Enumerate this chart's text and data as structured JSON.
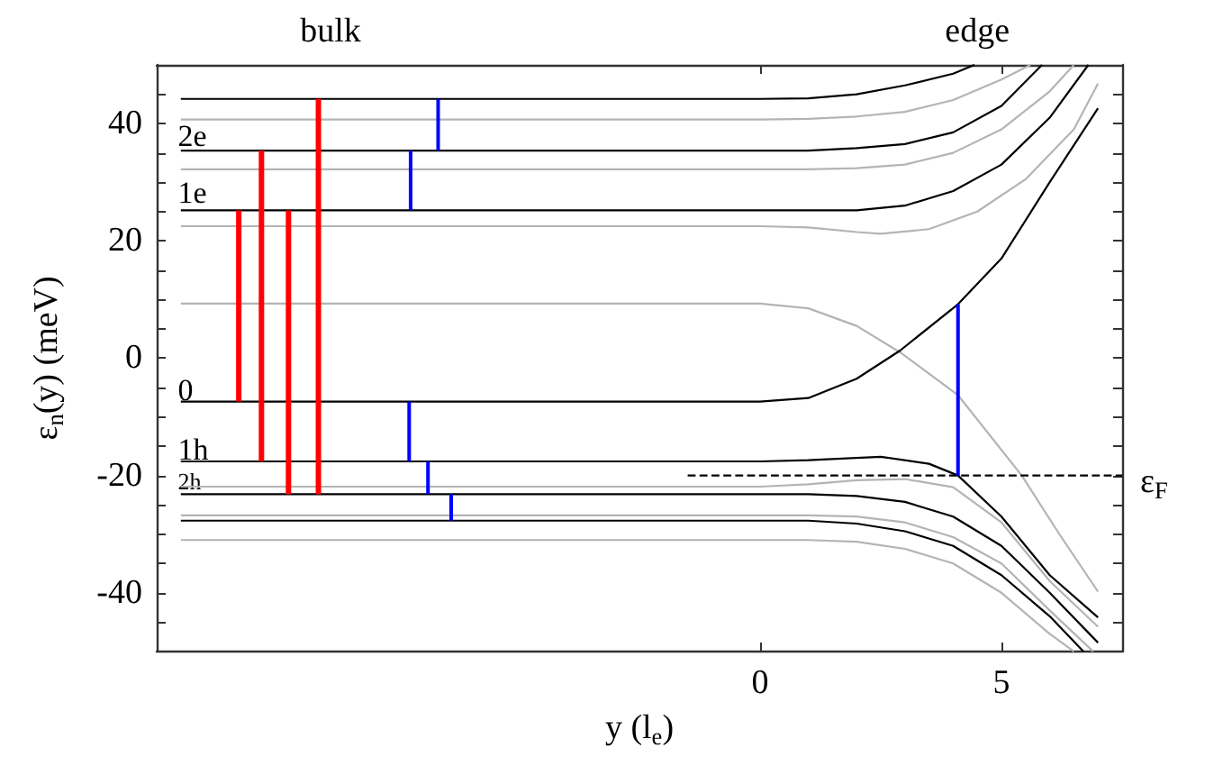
{
  "chart_data": {
    "type": "line",
    "xlabel": "y (l$_{e}$)",
    "ylabel": "ε$_{n}$(y) (meV)",
    "xlim": [
      -12.5,
      7.5
    ],
    "ylim": [
      -50,
      50
    ],
    "xticks": [
      0,
      5
    ],
    "yticks": [
      {
        "value": -45,
        "label": null
      },
      -40,
      {
        "value": -35,
        "label": null
      },
      {
        "value": -30,
        "label": null
      },
      {
        "value": -25,
        "label": null
      },
      -20,
      {
        "value": -15,
        "label": null
      },
      {
        "value": -10,
        "label": null
      },
      {
        "value": -5,
        "label": null
      },
      0,
      {
        "value": 5,
        "label": null
      },
      {
        "value": 10,
        "label": null
      },
      {
        "value": 15,
        "label": null
      },
      20,
      {
        "value": 25,
        "label": null
      },
      {
        "value": 30,
        "label": null
      },
      {
        "value": 35,
        "label": null
      },
      40,
      {
        "value": 45,
        "label": null
      }
    ],
    "grid": false,
    "marker": "none",
    "line_style": "solid",
    "series": [
      {
        "color": "#000000",
        "x": [
          -12,
          0,
          1,
          2,
          3,
          4,
          4.44
        ],
        "values": [
          44.2,
          44.2,
          44.3,
          45,
          46.5,
          48.5,
          50
        ]
      },
      {
        "color": "#b4b4b4",
        "x": [
          -12,
          0,
          1,
          2,
          3,
          4,
          5,
          5.6
        ],
        "values": [
          40.7,
          40.7,
          40.8,
          41.2,
          42,
          44,
          47.5,
          50
        ]
      },
      {
        "color": "#000000",
        "x": [
          -12,
          0,
          1,
          2,
          3,
          4,
          5,
          5.84
        ],
        "values": [
          35.4,
          35.4,
          35.4,
          35.8,
          36.5,
          38.5,
          43,
          50
        ]
      },
      {
        "color": "#b4b4b4",
        "x": [
          -12,
          0,
          1,
          2,
          3,
          4,
          5,
          6,
          6.5
        ],
        "values": [
          32.2,
          32.2,
          32.2,
          32.4,
          33,
          35,
          39,
          45.5,
          50
        ]
      },
      {
        "color": "#000000",
        "x": [
          -12,
          0,
          1,
          2,
          3,
          4,
          5,
          6,
          6.8
        ],
        "values": [
          25.2,
          25.2,
          25.2,
          25.2,
          26,
          28.5,
          33,
          41,
          50
        ]
      },
      {
        "color": "#b4b4b4",
        "x": [
          -12,
          0,
          1,
          2,
          2.5,
          3.5,
          4.5,
          5.5,
          6.5,
          7
        ],
        "values": [
          22.5,
          22.5,
          22.3,
          21.5,
          21.2,
          22,
          25,
          30.5,
          39,
          46.8
        ]
      },
      {
        "color": "#b4b4b4",
        "x": [
          -12,
          0,
          1,
          2,
          2.9,
          4.1,
          5.42,
          6.2,
          7
        ],
        "values": [
          9.3,
          9.3,
          8.5,
          5.5,
          1,
          -6.3,
          -20,
          -30,
          -39.8
        ]
      },
      {
        "color": "#000000",
        "x": [
          -12,
          0,
          1,
          2,
          2.9,
          4.1,
          5,
          6,
          7
        ],
        "values": [
          -7.4,
          -7.4,
          -6.8,
          -3.5,
          1.3,
          9.2,
          17,
          30,
          42.6
        ]
      },
      {
        "color": "#000000",
        "x": [
          -12,
          0,
          1,
          2.5,
          3.5,
          4.1,
          5,
          6,
          7
        ],
        "values": [
          -17.6,
          -17.6,
          -17.4,
          -16.8,
          -18,
          -20,
          -27,
          -37,
          -44.2
        ]
      },
      {
        "color": "#b4b4b4",
        "x": [
          -12,
          0,
          1,
          2,
          3,
          4,
          5,
          6,
          7
        ],
        "values": [
          -21.9,
          -21.9,
          -21.5,
          -20.8,
          -20.6,
          -22,
          -28,
          -38,
          -45.8
        ]
      },
      {
        "color": "#000000",
        "x": [
          -12,
          0,
          1,
          2,
          3,
          4,
          5,
          6,
          7
        ],
        "values": [
          -23.2,
          -23.2,
          -23.2,
          -23.5,
          -24.5,
          -27,
          -32,
          -40,
          -48.5
        ]
      },
      {
        "color": "#b4b4b4",
        "x": [
          -12,
          0,
          1,
          2,
          3,
          4,
          5,
          6,
          6.9
        ],
        "values": [
          -26.8,
          -26.8,
          -26.8,
          -27,
          -28,
          -30.5,
          -35,
          -43,
          -50
        ]
      },
      {
        "color": "#000000",
        "x": [
          -12,
          0,
          1,
          2,
          3,
          4,
          5,
          6,
          6.7
        ],
        "values": [
          -27.7,
          -27.7,
          -27.7,
          -28.2,
          -29.5,
          -32,
          -37,
          -44,
          -50
        ]
      },
      {
        "color": "#b4b4b4",
        "x": [
          -12,
          0,
          1,
          2,
          3,
          4,
          5,
          6,
          6.5
        ],
        "values": [
          -31,
          -31,
          -31,
          -31.3,
          -32.5,
          -35,
          -40,
          -47,
          -50
        ]
      },
      {
        "color": "#000000",
        "line_style": "dashed",
        "x": [
          -1.5,
          7.5
        ],
        "values": [
          -20,
          -20
        ]
      },
      {
        "color": "#ff0000",
        "x": [
          -10.8,
          -10.8
        ],
        "values": [
          -7.4,
          25.2
        ]
      },
      {
        "color": "#ff0000",
        "x": [
          -10.33,
          -10.33
        ],
        "values": [
          -17.6,
          35.4
        ]
      },
      {
        "color": "#ff0000",
        "x": [
          -9.77,
          -9.77
        ],
        "values": [
          -23.2,
          25.2
        ]
      },
      {
        "color": "#ff0000",
        "x": [
          -9.15,
          -9.15
        ],
        "values": [
          -23.2,
          44.2
        ]
      },
      {
        "color": "#0000ff",
        "x": [
          -7.24,
          -7.24
        ],
        "values": [
          25.2,
          35.4
        ]
      },
      {
        "color": "#0000ff",
        "x": [
          -6.67,
          -6.67
        ],
        "values": [
          35.4,
          44.2
        ]
      },
      {
        "color": "#0000ff",
        "x": [
          -7.27,
          -7.27
        ],
        "values": [
          -17.6,
          -7.4
        ]
      },
      {
        "color": "#0000ff",
        "x": [
          -6.88,
          -6.88
        ],
        "values": [
          -23.2,
          -17.6
        ]
      },
      {
        "color": "#0000ff",
        "x": [
          -6.4,
          -6.4
        ],
        "values": [
          -27.7,
          -23.2
        ]
      },
      {
        "color": "#0000ff",
        "x": [
          4.1,
          4.1
        ],
        "values": [
          -20,
          9.2
        ]
      }
    ],
    "annotations": [
      "bulk",
      "edge",
      "2e",
      "1e",
      "0",
      "1h",
      "2h",
      {
        "text": "ε$_{F}$",
        "x": 7.5,
        "y": -20
      }
    ]
  }
}
